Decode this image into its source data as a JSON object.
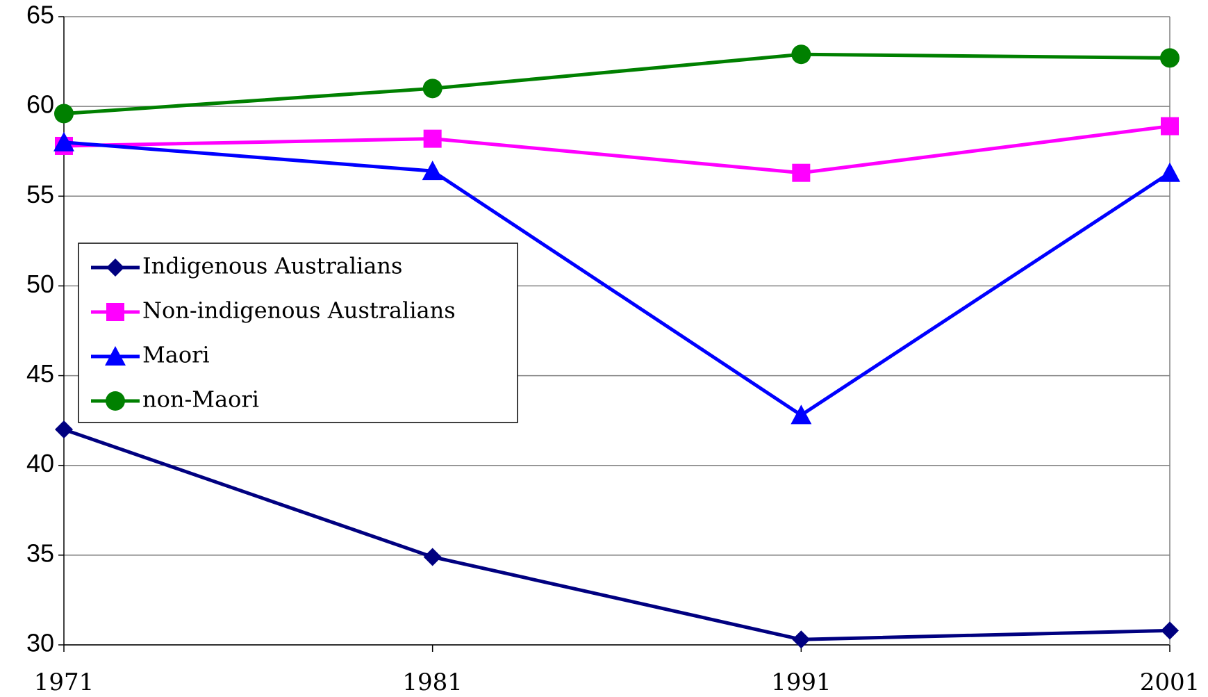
{
  "chart_data": {
    "type": "line",
    "categories": [
      "1971",
      "1981",
      "1991",
      "2001"
    ],
    "series": [
      {
        "name": "Indigenous Australians",
        "color": "#000080",
        "marker": "diamond",
        "values": [
          42,
          34.9,
          30.3,
          30.8
        ]
      },
      {
        "name": "Non-indigenous Australians",
        "color": "#ff00ff",
        "marker": "square",
        "values": [
          57.8,
          58.2,
          56.3,
          58.9
        ]
      },
      {
        "name": "Maori",
        "color": "#0000ff",
        "marker": "triangle",
        "values": [
          58,
          56.4,
          42.8,
          56.3
        ]
      },
      {
        "name": "non-Maori",
        "color": "#008000",
        "marker": "circle",
        "values": [
          59.6,
          61,
          62.9,
          62.7
        ]
      }
    ],
    "ylim": [
      30,
      65
    ],
    "yticks": [
      30,
      35,
      40,
      45,
      50,
      55,
      60,
      65
    ],
    "grid": true,
    "legend": "left"
  }
}
